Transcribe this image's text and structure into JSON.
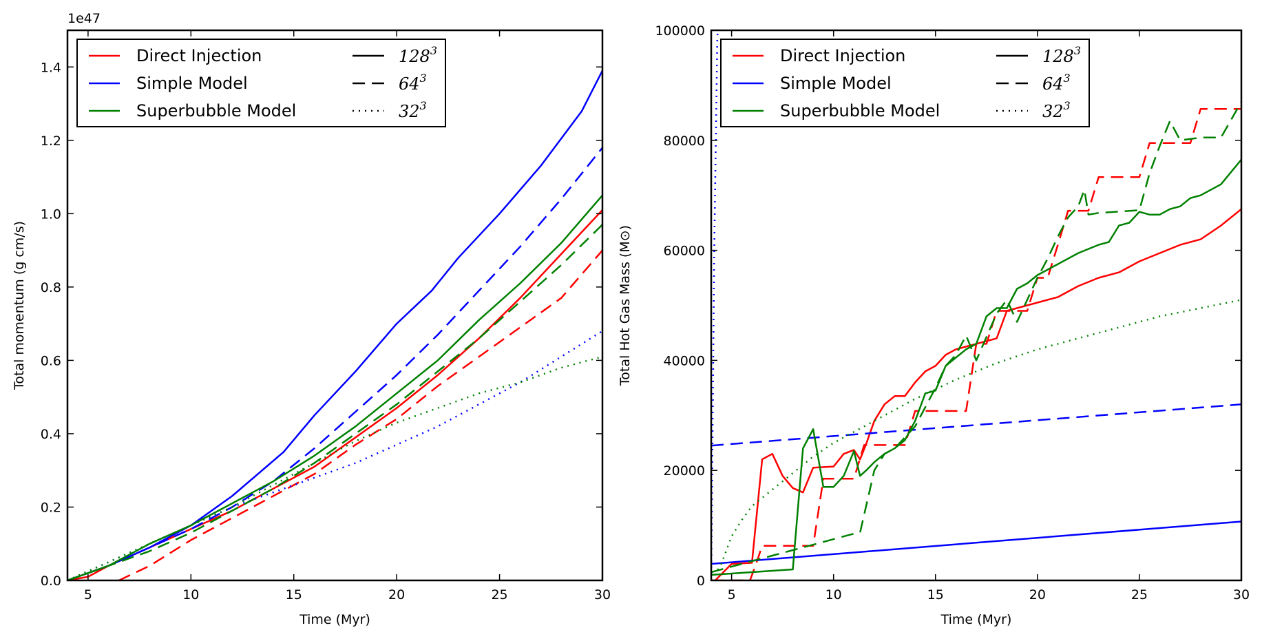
{
  "colors": {
    "direct": "#ff0000",
    "simple": "#0000ff",
    "superbubble": "#008000"
  },
  "legend": {
    "models": [
      {
        "key": "direct",
        "label": "Direct Injection"
      },
      {
        "key": "simple",
        "label": "Simple Model"
      },
      {
        "key": "superbubble",
        "label": "Superbubble Model"
      }
    ],
    "resolutions": [
      {
        "key": "r128",
        "style": "solid",
        "base": "128",
        "exp": "3"
      },
      {
        "key": "r64",
        "style": "dashed",
        "base": "64",
        "exp": "3"
      },
      {
        "key": "r32",
        "style": "dotted",
        "base": "32",
        "exp": "3"
      }
    ]
  },
  "chart_data": [
    {
      "type": "line",
      "title": "",
      "xlabel": "Time (Myr)",
      "ylabel": "Total momentum (g cm/s)",
      "offset_label": "1e47",
      "xlim": [
        4,
        30
      ],
      "ylim": [
        0,
        1.5
      ],
      "xticks": [
        5,
        10,
        15,
        20,
        25,
        30
      ],
      "yticks": [
        0.0,
        0.2,
        0.4,
        0.6,
        0.8,
        1.0,
        1.2,
        1.4
      ],
      "ytick_labels": [
        "0.0",
        "0.2",
        "0.4",
        "0.6",
        "0.8",
        "1.0",
        "1.2",
        "1.4"
      ],
      "legend_position": "top-left",
      "series": [
        {
          "name": "Direct Injection 128^3",
          "color_key": "direct",
          "style": "solid",
          "x": [
            4,
            5,
            6,
            8,
            10,
            12,
            14,
            16,
            18,
            20,
            22,
            24,
            26,
            28,
            30
          ],
          "y": [
            0.0,
            0.01,
            0.04,
            0.09,
            0.14,
            0.19,
            0.25,
            0.31,
            0.39,
            0.47,
            0.56,
            0.66,
            0.77,
            0.89,
            1.01
          ]
        },
        {
          "name": "Direct Injection 64^3",
          "color_key": "direct",
          "style": "dashed",
          "x": [
            6.5,
            8,
            10,
            12,
            14,
            16,
            18,
            20,
            22,
            24,
            26,
            28,
            30
          ],
          "y": [
            0.0,
            0.04,
            0.11,
            0.17,
            0.23,
            0.29,
            0.37,
            0.44,
            0.53,
            0.61,
            0.69,
            0.77,
            0.9
          ]
        },
        {
          "name": "Simple Model 128^3",
          "color_key": "simple",
          "style": "solid",
          "x": [
            4,
            6,
            8,
            10,
            12,
            14.5,
            16,
            18,
            20,
            21.7,
            23,
            25,
            27,
            29,
            30
          ],
          "y": [
            0.0,
            0.04,
            0.09,
            0.15,
            0.23,
            0.35,
            0.45,
            0.57,
            0.7,
            0.79,
            0.88,
            1.0,
            1.13,
            1.28,
            1.39
          ]
        },
        {
          "name": "Simple Model 64^3",
          "color_key": "simple",
          "style": "dashed",
          "x": [
            4,
            6,
            8,
            10,
            12,
            14,
            16,
            18,
            20,
            22,
            24,
            26,
            28,
            30
          ],
          "y": [
            0.0,
            0.04,
            0.09,
            0.14,
            0.2,
            0.27,
            0.36,
            0.46,
            0.56,
            0.67,
            0.79,
            0.91,
            1.04,
            1.18
          ]
        },
        {
          "name": "Simple Model 32^3",
          "color_key": "simple",
          "style": "dotted",
          "x": [
            4,
            6,
            8,
            10,
            12,
            14,
            16,
            18,
            20,
            22,
            24,
            26,
            28,
            30
          ],
          "y": [
            0.0,
            0.05,
            0.1,
            0.15,
            0.2,
            0.24,
            0.28,
            0.32,
            0.37,
            0.42,
            0.48,
            0.54,
            0.61,
            0.68
          ]
        },
        {
          "name": "Superbubble Model 128^3",
          "color_key": "superbubble",
          "style": "solid",
          "x": [
            4,
            6,
            8,
            10,
            12,
            14,
            16,
            18,
            20,
            22,
            24,
            26,
            28,
            30
          ],
          "y": [
            0.0,
            0.04,
            0.1,
            0.15,
            0.21,
            0.27,
            0.34,
            0.42,
            0.51,
            0.6,
            0.71,
            0.81,
            0.92,
            1.05
          ]
        },
        {
          "name": "Superbubble Model 64^3",
          "color_key": "superbubble",
          "style": "dashed",
          "x": [
            4,
            6,
            8,
            10,
            12,
            14,
            16,
            18,
            20,
            22,
            24,
            26,
            28,
            30
          ],
          "y": [
            0.0,
            0.04,
            0.08,
            0.13,
            0.19,
            0.25,
            0.32,
            0.4,
            0.48,
            0.57,
            0.66,
            0.76,
            0.86,
            0.97
          ]
        },
        {
          "name": "Superbubble Model 32^3",
          "color_key": "superbubble",
          "style": "dotted",
          "x": [
            4,
            6,
            8,
            10,
            12,
            14,
            16,
            18,
            20,
            22,
            24,
            26,
            28,
            30
          ],
          "y": [
            0.0,
            0.05,
            0.1,
            0.15,
            0.2,
            0.26,
            0.32,
            0.38,
            0.43,
            0.47,
            0.51,
            0.54,
            0.58,
            0.61
          ]
        }
      ]
    },
    {
      "type": "line",
      "title": "",
      "xlabel": "Time (Myr)",
      "ylabel": "Total Hot Gas Mass (M⊙)",
      "xlim": [
        4,
        30
      ],
      "ylim": [
        0,
        100000
      ],
      "xticks": [
        5,
        10,
        15,
        20,
        25,
        30
      ],
      "yticks": [
        0,
        20000,
        40000,
        60000,
        80000,
        100000
      ],
      "ytick_labels": [
        "0",
        "20000",
        "40000",
        "60000",
        "80000",
        "100000"
      ],
      "legend_position": "top-left",
      "series": [
        {
          "name": "Direct Injection 128^3",
          "color_key": "direct",
          "style": "solid",
          "x": [
            4.2,
            5,
            6,
            6.5,
            7,
            7.5,
            8,
            8.5,
            9,
            10,
            10.5,
            11,
            11.3,
            11.6,
            12,
            12.5,
            13,
            13.5,
            14,
            14.5,
            15,
            15.5,
            16,
            17,
            18,
            18.5,
            19,
            20,
            21,
            22,
            23,
            24,
            25,
            26,
            27,
            28,
            29,
            30
          ],
          "y": [
            0,
            3000,
            3200,
            22000,
            23000,
            19000,
            16800,
            16000,
            20500,
            20700,
            23000,
            23700,
            22000,
            24800,
            29000,
            32000,
            33500,
            33500,
            36000,
            38000,
            39000,
            41000,
            42000,
            43000,
            44000,
            49000,
            49500,
            50500,
            51500,
            53500,
            55000,
            56000,
            58000,
            59500,
            61000,
            62000,
            64500,
            67500
          ]
        },
        {
          "name": "Direct Injection 64^3",
          "color_key": "direct",
          "style": "dashed",
          "x": [
            4,
            5.9,
            6.2,
            6.5,
            8,
            9,
            9.5,
            10,
            11,
            11.5,
            12,
            13,
            13.5,
            14,
            15,
            16,
            16.5,
            17,
            17.5,
            18,
            19,
            19.5,
            20,
            20.5,
            21,
            21.5,
            22,
            22.5,
            23,
            24,
            24.5,
            25,
            25.5,
            26,
            27,
            27.5,
            28,
            29,
            30
          ],
          "y": [
            0,
            0,
            3000,
            6300,
            6300,
            6300,
            18500,
            18500,
            18500,
            24600,
            24600,
            24600,
            24600,
            30800,
            30800,
            30800,
            30800,
            43000,
            43000,
            49000,
            49000,
            49000,
            55000,
            55000,
            61000,
            67200,
            67200,
            67200,
            73300,
            73300,
            73300,
            73300,
            79500,
            79500,
            79500,
            79500,
            85700,
            85700,
            85700
          ]
        },
        {
          "name": "Simple Model 128^3",
          "color_key": "simple",
          "style": "solid",
          "x": [
            4,
            30
          ],
          "y": [
            3000,
            10700
          ]
        },
        {
          "name": "Simple Model 64^3",
          "color_key": "simple",
          "style": "dashed",
          "x": [
            4,
            30
          ],
          "y": [
            24500,
            32000
          ]
        },
        {
          "name": "Simple Model 32^3",
          "color_key": "simple",
          "style": "dotted",
          "x": [
            4.0,
            4.15,
            4.3,
            4.35
          ],
          "y": [
            0,
            60000,
            99000,
            100000
          ]
        },
        {
          "name": "Superbubble Model 128^3",
          "color_key": "superbubble",
          "style": "solid",
          "x": [
            4,
            8,
            8.5,
            9,
            9.5,
            10,
            10.5,
            11,
            11.3,
            11.6,
            12,
            12.5,
            13,
            13.5,
            14,
            14.5,
            15,
            15.5,
            16,
            16.5,
            17,
            17.5,
            18,
            18.5,
            19,
            19.5,
            20,
            21,
            22,
            23,
            23.5,
            24,
            24.5,
            25,
            25.5,
            26,
            26.5,
            27,
            27.5,
            28,
            29,
            30
          ],
          "y": [
            1000,
            2000,
            24000,
            27500,
            17000,
            17000,
            19000,
            23500,
            19000,
            20000,
            21500,
            23000,
            24000,
            25500,
            29000,
            34000,
            34500,
            39000,
            40500,
            42000,
            43000,
            48000,
            49500,
            49500,
            53000,
            54000,
            55500,
            57500,
            59500,
            61000,
            61500,
            64500,
            65000,
            67000,
            66500,
            66500,
            67500,
            68000,
            69500,
            70000,
            72000,
            76500
          ]
        },
        {
          "name": "Superbubble Model 64^3",
          "color_key": "superbubble",
          "style": "dashed",
          "x": [
            4,
            5.5,
            7,
            8.5,
            10,
            11,
            11.3,
            12,
            12.5,
            13,
            14,
            15,
            15.5,
            16,
            16.5,
            17,
            18,
            18.5,
            19,
            19.5,
            20,
            20.5,
            21,
            21.5,
            22,
            22.3,
            22.5,
            23,
            25,
            25.5,
            26,
            26.5,
            27,
            28,
            29,
            30
          ],
          "y": [
            1500,
            3000,
            4500,
            6000,
            7500,
            8500,
            8700,
            20000,
            23000,
            24000,
            28000,
            35000,
            39000,
            41000,
            44500,
            40000,
            48500,
            51000,
            47000,
            51000,
            55000,
            58500,
            62500,
            66000,
            68000,
            71000,
            66500,
            66800,
            67300,
            74000,
            79000,
            83500,
            80000,
            80500,
            80500,
            87000
          ]
        },
        {
          "name": "Superbubble Model 32^3",
          "color_key": "superbubble",
          "style": "dotted",
          "x": [
            4,
            4.5,
            5,
            5.5,
            6,
            7,
            8,
            9,
            10,
            11,
            12,
            14,
            16,
            18,
            20,
            22,
            24,
            26,
            28,
            30
          ],
          "y": [
            0,
            3000,
            8000,
            11000,
            13500,
            16500,
            19500,
            22500,
            25000,
            27000,
            29000,
            33000,
            36500,
            39500,
            42000,
            44000,
            46000,
            48000,
            49500,
            51000
          ]
        }
      ]
    }
  ]
}
